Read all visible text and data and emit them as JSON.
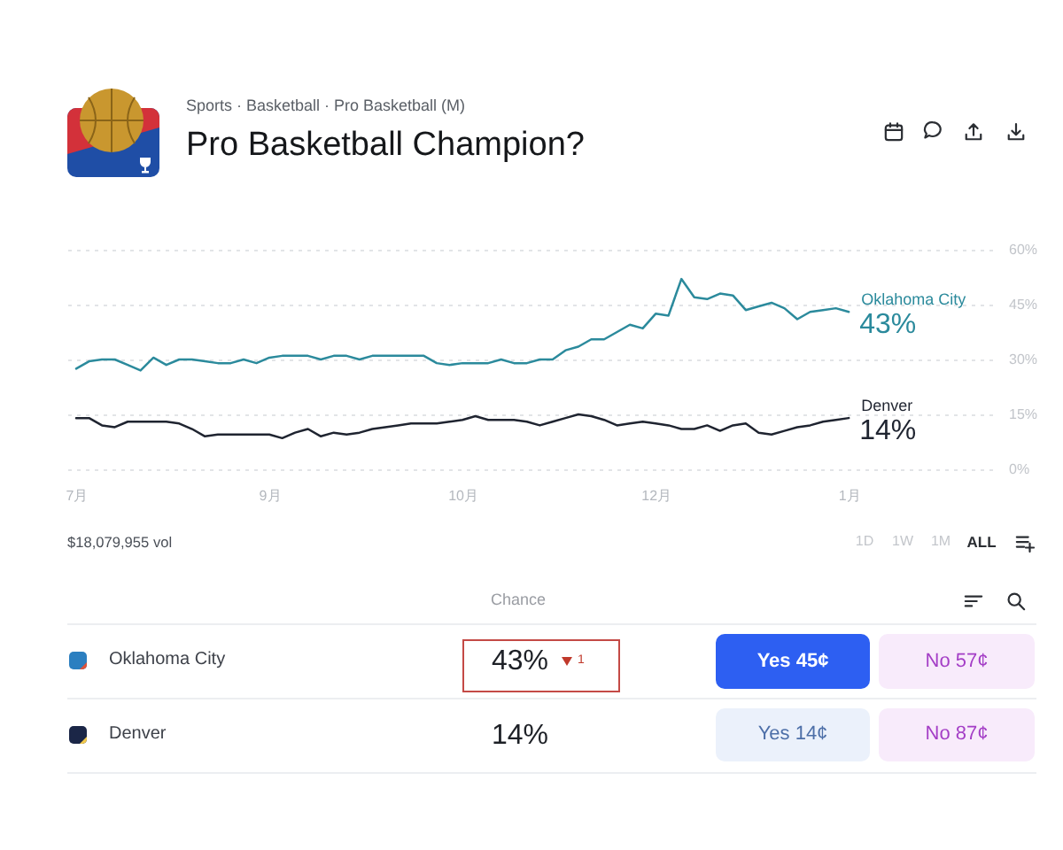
{
  "chart_data": [
    {
      "type": "line",
      "title": "Pro Basketball Champion?",
      "subtitle": "Sports · Basketball · Pro Basketball (M)",
      "categories": [
        "7月",
        null,
        null,
        null,
        null,
        null,
        null,
        null,
        null,
        null,
        null,
        null,
        null,
        null,
        null,
        "9月",
        null,
        null,
        null,
        null,
        null,
        null,
        null,
        null,
        null,
        null,
        null,
        null,
        null,
        null,
        "10月",
        null,
        null,
        null,
        null,
        null,
        null,
        null,
        null,
        null,
        null,
        null,
        null,
        null,
        null,
        "12月",
        null,
        null,
        null,
        null,
        null,
        null,
        null,
        null,
        null,
        null,
        null,
        null,
        null,
        null,
        "1月"
      ],
      "ylim": [
        0,
        60
      ],
      "yticks": [
        {
          "value": 0,
          "label": "0%"
        },
        {
          "value": 15,
          "label": "15%"
        },
        {
          "value": 30,
          "label": "30%"
        },
        {
          "value": 45,
          "label": "45%"
        },
        {
          "value": 60,
          "label": "60%"
        }
      ],
      "grid": "y",
      "series": [
        {
          "name": "Oklahoma City",
          "color": "#2b8a9c",
          "values": [
            27.5,
            29.5,
            30,
            30,
            28.5,
            27,
            30.5,
            28.5,
            30,
            30,
            29.5,
            29,
            29,
            30,
            29,
            30.5,
            31,
            31,
            31,
            30,
            31,
            31,
            30,
            31,
            31,
            31,
            31,
            31,
            29,
            28.5,
            29,
            29,
            29,
            30,
            29,
            29,
            30,
            30,
            32.5,
            33.5,
            35.5,
            35.5,
            37.5,
            39.5,
            38.5,
            42.5,
            42,
            52,
            47,
            46.5,
            48,
            47.5,
            43.5,
            44.5,
            45.5,
            44,
            41,
            43,
            43.5,
            44,
            43
          ],
          "value_labels": [
            null,
            null,
            null,
            null,
            null,
            null,
            null,
            null,
            null,
            null,
            null,
            null,
            null,
            null,
            null,
            null,
            null,
            null,
            null,
            null,
            null,
            null,
            null,
            null,
            null,
            null,
            null,
            null,
            null,
            null,
            null,
            null,
            null,
            null,
            null,
            null,
            null,
            null,
            null,
            null,
            null,
            null,
            null,
            null,
            null,
            null,
            null,
            null,
            null,
            null,
            null,
            null,
            null,
            null,
            null,
            null,
            null,
            null,
            null,
            null,
            "43%"
          ]
        },
        {
          "name": "Denver",
          "color": "#1f2430",
          "values": [
            14,
            14,
            12,
            11.5,
            13,
            13,
            13,
            13,
            12.5,
            11,
            9,
            9.5,
            9.5,
            9.5,
            9.5,
            9.5,
            8.5,
            10,
            11,
            9,
            10,
            9.5,
            10,
            11,
            11.5,
            12,
            12.5,
            12.5,
            12.5,
            13,
            13.5,
            14.5,
            13.5,
            13.5,
            13.5,
            13,
            12,
            13,
            14,
            15,
            14.5,
            13.5,
            12,
            12.5,
            13,
            12.5,
            12,
            11,
            11,
            12,
            10.5,
            12,
            12.5,
            10,
            9.5,
            10.5,
            11.5,
            12,
            13,
            13.5,
            14
          ],
          "value_labels": [
            null,
            null,
            null,
            null,
            null,
            null,
            null,
            null,
            null,
            null,
            null,
            null,
            null,
            null,
            null,
            null,
            null,
            null,
            null,
            null,
            null,
            null,
            null,
            null,
            null,
            null,
            null,
            null,
            null,
            null,
            null,
            null,
            null,
            null,
            null,
            null,
            null,
            null,
            null,
            null,
            null,
            null,
            null,
            null,
            null,
            null,
            null,
            null,
            null,
            null,
            null,
            null,
            null,
            null,
            null,
            null,
            null,
            null,
            null,
            null,
            "14%"
          ]
        }
      ]
    },
    {
      "type": "other",
      "annotations": [
        "$18,079,955 vol",
        "1D",
        "1W",
        "1M",
        "ALL",
        "Chance",
        "Oklahoma City",
        "43%",
        "1",
        "Yes 45¢",
        "No 57¢",
        "Denver",
        "14%",
        "Yes 14¢",
        "No 87¢"
      ]
    }
  ]
}
